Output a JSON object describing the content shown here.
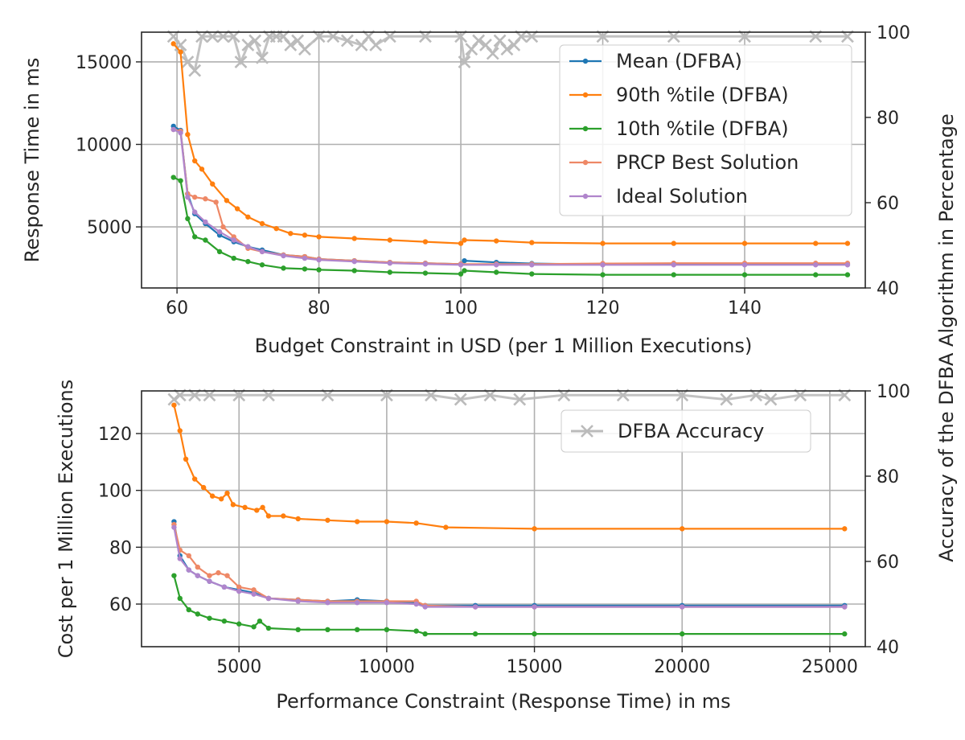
{
  "chart_data": [
    {
      "type": "line",
      "xlabel": "Budget Constraint in USD (per 1 Million Executions)",
      "ylabel": "Response Time in ms",
      "y2label": "Accuracy of the DFBA Algorithm in Percentage",
      "xlim": [
        55,
        157
      ],
      "ylim": [
        1300,
        16800
      ],
      "y2lim": [
        40,
        100
      ],
      "xticks": [
        60,
        80,
        100,
        120,
        140
      ],
      "yticks": [
        5000,
        10000,
        15000
      ],
      "y2ticks": [
        40,
        60,
        80,
        100
      ],
      "grid": true,
      "legend_position": "top-right",
      "series": [
        {
          "name": "Mean (DFBA)",
          "color": "#1f77b4",
          "x": [
            59.5,
            60.5,
            61.5,
            62.5,
            64,
            66,
            68,
            70,
            72,
            75,
            78,
            80,
            85,
            90,
            95,
            100,
            100.5,
            105,
            110,
            120,
            130,
            140,
            150,
            154.5
          ],
          "y": [
            11100,
            10850,
            7000,
            5800,
            5200,
            4500,
            4100,
            3800,
            3600,
            3300,
            3200,
            3050,
            2950,
            2850,
            2800,
            2750,
            2950,
            2850,
            2780,
            2720,
            2720,
            2720,
            2720,
            2720
          ]
        },
        {
          "name": "90th %tile (DFBA)",
          "color": "#ff7f0e",
          "x": [
            59.5,
            60.5,
            61.5,
            62.5,
            63.5,
            65,
            67,
            68.5,
            70,
            72,
            74,
            76,
            78,
            80,
            85,
            90,
            95,
            100,
            100.5,
            105,
            110,
            120,
            130,
            140,
            150,
            154.5
          ],
          "y": [
            16100,
            15600,
            10600,
            9000,
            8500,
            7600,
            6600,
            6100,
            5600,
            5200,
            4900,
            4600,
            4500,
            4400,
            4300,
            4200,
            4100,
            4000,
            4200,
            4150,
            4050,
            4000,
            4000,
            4000,
            4000,
            4000
          ]
        },
        {
          "name": "10th %tile (DFBA)",
          "color": "#2ca02c",
          "x": [
            59.5,
            60.5,
            61.5,
            62.5,
            64,
            66,
            68,
            70,
            72,
            75,
            78,
            80,
            85,
            90,
            95,
            100,
            100.5,
            105,
            110,
            120,
            130,
            140,
            150,
            154.5
          ],
          "y": [
            8000,
            7800,
            5500,
            4400,
            4200,
            3500,
            3100,
            2900,
            2700,
            2500,
            2450,
            2400,
            2350,
            2250,
            2200,
            2150,
            2350,
            2250,
            2150,
            2100,
            2100,
            2100,
            2100,
            2100
          ]
        },
        {
          "name": "PRCP Best Solution",
          "color": "#ee8866",
          "x": [
            59.5,
            60.5,
            61.5,
            62.5,
            64,
            65.5,
            66.5,
            68,
            70,
            72,
            75,
            78,
            80,
            85,
            90,
            95,
            100,
            105,
            110,
            120,
            130,
            140,
            150,
            154.5
          ],
          "y": [
            10900,
            10800,
            7000,
            6800,
            6700,
            6500,
            5000,
            4400,
            3700,
            3500,
            3300,
            3200,
            3050,
            2950,
            2850,
            2800,
            2750,
            2750,
            2750,
            2780,
            2800,
            2800,
            2800,
            2800
          ]
        },
        {
          "name": "Ideal Solution",
          "color": "#b085cc",
          "x": [
            59.5,
            60.5,
            61.5,
            62.5,
            64,
            66,
            68,
            70,
            72,
            75,
            78,
            80,
            85,
            90,
            95,
            100,
            105,
            110,
            120,
            130,
            140,
            150,
            154.5
          ],
          "y": [
            10900,
            10700,
            6800,
            5900,
            5300,
            4700,
            4200,
            3800,
            3500,
            3250,
            3100,
            3000,
            2900,
            2800,
            2750,
            2700,
            2700,
            2700,
            2700,
            2700,
            2700,
            2700,
            2700
          ]
        },
        {
          "name": "DFBA Accuracy",
          "axis": "y2",
          "color": "#bbbbbb",
          "marker": "x",
          "x": [
            59.5,
            60.5,
            61.5,
            62.5,
            63.5,
            65,
            66.5,
            68,
            69,
            70,
            71,
            72,
            73,
            74,
            75,
            76,
            77,
            78,
            80,
            82,
            84,
            86,
            87,
            88,
            90,
            95,
            100,
            100.5,
            101.5,
            102.5,
            103.5,
            104.5,
            105.5,
            106.5,
            107.5,
            108.5,
            110,
            120,
            130,
            140,
            150,
            154.5
          ],
          "y": [
            99,
            97,
            93,
            91,
            99,
            99,
            99,
            99,
            93,
            97,
            98,
            94,
            99,
            99,
            99,
            97,
            98,
            96,
            99,
            99,
            98,
            97,
            99,
            97,
            99,
            99,
            99,
            93,
            96,
            98,
            97,
            95,
            98,
            96,
            97,
            99,
            99,
            99,
            99,
            99,
            99,
            99
          ]
        }
      ]
    },
    {
      "type": "line",
      "xlabel": "Performance Constraint (Response Time) in ms",
      "ylabel": "Cost per 1 Million Executions",
      "y2label": "Accuracy of the DFBA Algorithm",
      "xlim": [
        1700,
        26200
      ],
      "ylim": [
        45,
        135
      ],
      "y2lim": [
        40,
        100
      ],
      "xticks": [
        5000,
        10000,
        15000,
        20000,
        25000
      ],
      "yticks": [
        60,
        80,
        100,
        120
      ],
      "y2ticks": [
        40,
        60,
        80,
        100
      ],
      "grid": true,
      "legend_position": "top-right",
      "legend": [
        "DFBA Accuracy"
      ],
      "series": [
        {
          "name": "Mean (DFBA)",
          "color": "#1f77b4",
          "x": [
            2800,
            3000,
            3300,
            3600,
            4000,
            4500,
            5000,
            5500,
            6000,
            7000,
            8000,
            9000,
            10000,
            11000,
            11300,
            13000,
            15000,
            20000,
            25500
          ],
          "y": [
            89,
            77,
            72,
            70,
            68,
            66,
            65,
            64,
            62,
            61.5,
            61,
            61.5,
            61,
            60.5,
            59.5,
            59.5,
            59.5,
            59.5,
            59.5
          ]
        },
        {
          "name": "90th %tile (DFBA)",
          "color": "#ff7f0e",
          "x": [
            2800,
            3000,
            3200,
            3500,
            3800,
            4100,
            4400,
            4600,
            4800,
            5200,
            5600,
            5800,
            6000,
            6500,
            7000,
            8000,
            9000,
            10000,
            11000,
            12000,
            15000,
            20000,
            25500
          ],
          "y": [
            130,
            121,
            111,
            104,
            101,
            98,
            97,
            99,
            95,
            94,
            93,
            94,
            91,
            91,
            90,
            89.5,
            89,
            89,
            88.5,
            87,
            86.5,
            86.5,
            86.5
          ]
        },
        {
          "name": "10th %tile (DFBA)",
          "color": "#2ca02c",
          "x": [
            2800,
            3000,
            3300,
            3600,
            4000,
            4500,
            5000,
            5500,
            5700,
            6000,
            7000,
            8000,
            9000,
            10000,
            11000,
            11300,
            13000,
            15000,
            20000,
            25500
          ],
          "y": [
            70,
            62,
            58,
            56.5,
            55,
            54,
            53,
            52,
            54,
            51.5,
            51,
            51,
            51,
            51,
            50.5,
            49.5,
            49.5,
            49.5,
            49.5,
            49.5
          ]
        },
        {
          "name": "PRCP Best Solution",
          "color": "#ee8866",
          "x": [
            2800,
            3000,
            3300,
            3600,
            4000,
            4300,
            4600,
            5000,
            5500,
            6000,
            7000,
            8000,
            9000,
            10000,
            11000,
            11300,
            13000,
            15000,
            20000,
            25500
          ],
          "y": [
            88,
            79,
            77,
            73,
            70,
            71,
            70,
            66,
            65,
            62,
            61.5,
            61,
            61,
            61,
            61,
            59.5,
            59,
            59,
            59,
            59
          ]
        },
        {
          "name": "Ideal Solution",
          "color": "#b085cc",
          "x": [
            2800,
            3000,
            3300,
            3600,
            4000,
            4500,
            5000,
            5500,
            6000,
            7000,
            8000,
            9000,
            10000,
            11000,
            11300,
            13000,
            15000,
            20000,
            25500
          ],
          "y": [
            87,
            76,
            72,
            70,
            68,
            66,
            64.5,
            63.5,
            62,
            61,
            60.5,
            60.5,
            60.5,
            60,
            59,
            59,
            59,
            59,
            59
          ]
        },
        {
          "name": "DFBA Accuracy",
          "axis": "y2",
          "color": "#bbbbbb",
          "marker": "x",
          "x": [
            2800,
            3000,
            3500,
            4000,
            5000,
            6000,
            8000,
            10000,
            11500,
            12500,
            13500,
            14500,
            16000,
            18000,
            20000,
            21500,
            22500,
            23000,
            24000,
            25500
          ],
          "y": [
            98,
            99,
            99,
            99,
            99,
            99,
            99,
            99,
            99,
            98,
            99,
            98,
            99,
            99,
            99,
            98,
            99,
            98,
            99,
            99
          ]
        }
      ]
    }
  ],
  "legend_top": {
    "items": [
      {
        "label": "Mean (DFBA)",
        "color": "#1f77b4"
      },
      {
        "label": "90th %tile (DFBA)",
        "color": "#ff7f0e"
      },
      {
        "label": "10th %tile (DFBA)",
        "color": "#2ca02c"
      },
      {
        "label": "PRCP Best Solution",
        "color": "#ee8866"
      },
      {
        "label": "Ideal Solution",
        "color": "#b085cc"
      }
    ]
  },
  "legend_bottom": {
    "items": [
      {
        "label": "DFBA Accuracy",
        "color": "#bbbbbb"
      }
    ]
  }
}
